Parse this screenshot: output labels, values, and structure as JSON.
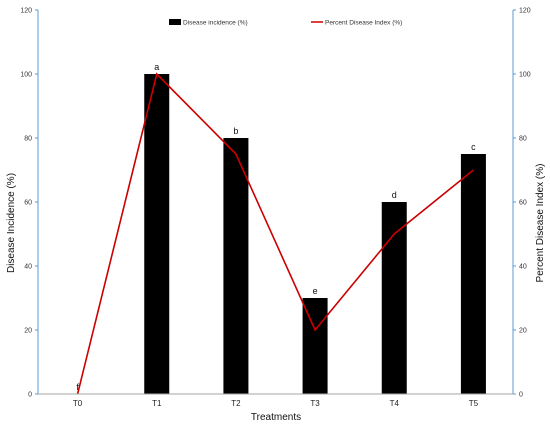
{
  "chart_data": {
    "type": "bar",
    "categories": [
      "T0",
      "T1",
      "T2",
      "T3",
      "T4",
      "T5"
    ],
    "series": [
      {
        "name": "Disease incidence (%)",
        "type": "bar",
        "axis": "left",
        "color": "#000000",
        "values": [
          0,
          100,
          80,
          30,
          60,
          75
        ]
      },
      {
        "name": "Percent Disease Index (%)",
        "type": "line",
        "axis": "right",
        "color": "#cc0000",
        "values": [
          0,
          100,
          75,
          20,
          50,
          70
        ]
      }
    ],
    "significance_labels": [
      "f",
      "a",
      "b",
      "e",
      "d",
      "c"
    ],
    "xlabel": "Treatments",
    "ylabel": "Disease Incidence (%)",
    "y2label": "Percent Disease Index (%)",
    "ylim": [
      0,
      120
    ],
    "y2lim": [
      0,
      120
    ],
    "yticks": [
      0,
      20,
      40,
      60,
      80,
      100,
      120
    ],
    "y2ticks": [
      0,
      20,
      40,
      60,
      80,
      100,
      120
    ],
    "grid": false,
    "legend_position": "top-center",
    "axis_color": "#5b9bd5"
  }
}
